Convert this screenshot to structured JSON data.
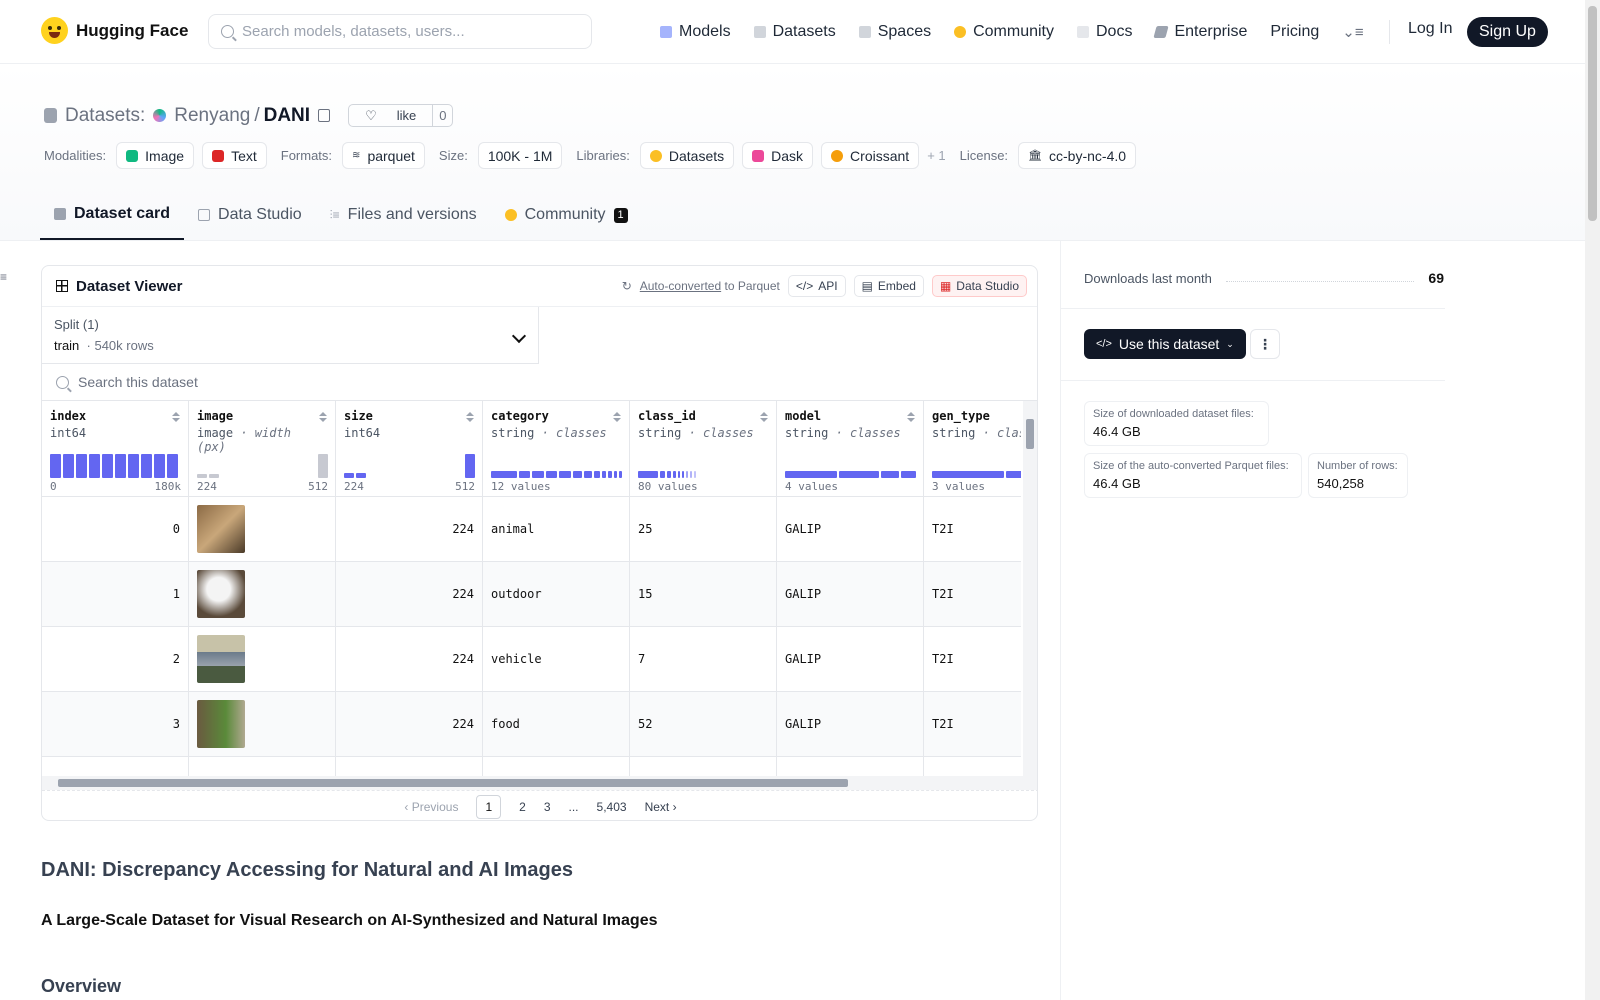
{
  "nav": {
    "brand": "Hugging Face",
    "search_placeholder": "Search models, datasets, users...",
    "links": [
      "Models",
      "Datasets",
      "Spaces",
      "Community",
      "Docs",
      "Enterprise",
      "Pricing"
    ],
    "login": "Log In",
    "signup": "Sign Up"
  },
  "repo": {
    "section": "Datasets:",
    "owner": "Renyang",
    "slash": "/",
    "name": "DANI",
    "like_label": "like",
    "like_count": "0"
  },
  "tags": {
    "modalities_label": "Modalities:",
    "modalities": [
      "Image",
      "Text"
    ],
    "formats_label": "Formats:",
    "format": "parquet",
    "size_label": "Size:",
    "size": "100K - 1M",
    "libraries_label": "Libraries:",
    "libraries": [
      "Datasets",
      "Dask",
      "Croissant"
    ],
    "more": "+ 1",
    "license_label": "License:",
    "license": "cc-by-nc-4.0"
  },
  "tabs": [
    "Dataset card",
    "Data Studio",
    "Files and versions",
    "Community"
  ],
  "community_count": "1",
  "viewer": {
    "title": "Dataset Viewer",
    "auto_converted": "Auto-converted",
    "to_parquet": "to Parquet",
    "api": "API",
    "embed": "Embed",
    "data_studio": "Data Studio",
    "split_label": "Split (1)",
    "split_name": "train",
    "split_rows": "· 540k rows",
    "search_placeholder": "Search this dataset",
    "columns": [
      {
        "name": "index",
        "type": "int64",
        "sub": "",
        "range_lo": "0",
        "range_hi": "180k"
      },
      {
        "name": "image",
        "type": "image",
        "sub": "· width (px)",
        "range_lo": "224",
        "range_hi": "512"
      },
      {
        "name": "size",
        "type": "int64",
        "sub": "",
        "range_lo": "224",
        "range_hi": "512"
      },
      {
        "name": "category",
        "type": "string",
        "sub": "· classes",
        "range_lo": "12 values",
        "range_hi": ""
      },
      {
        "name": "class_id",
        "type": "string",
        "sub": "· classes",
        "range_lo": "80 values",
        "range_hi": ""
      },
      {
        "name": "model",
        "type": "string",
        "sub": "· classes",
        "range_lo": "4 values",
        "range_hi": ""
      },
      {
        "name": "gen_type",
        "type": "string",
        "sub": "· classes",
        "range_lo": "3 values",
        "range_hi": ""
      }
    ],
    "rows": [
      {
        "index": "0",
        "size": "224",
        "category": "animal",
        "class_id": "25",
        "model": "GALIP",
        "gen_type": "T2I"
      },
      {
        "index": "1",
        "size": "224",
        "category": "outdoor",
        "class_id": "15",
        "model": "GALIP",
        "gen_type": "T2I"
      },
      {
        "index": "2",
        "size": "224",
        "category": "vehicle",
        "class_id": "7",
        "model": "GALIP",
        "gen_type": "T2I"
      },
      {
        "index": "3",
        "size": "224",
        "category": "food",
        "class_id": "52",
        "model": "GALIP",
        "gen_type": "T2I"
      }
    ],
    "pager": {
      "prev": "‹ Previous",
      "pages": [
        "1",
        "2",
        "3",
        "...",
        "5,403"
      ],
      "next": "Next ›"
    }
  },
  "card": {
    "h1": "DANI: Discrepancy Accessing for Natural and AI Images",
    "h2": "A Large-Scale Dataset for Visual Research on AI-Synthesized and Natural Images",
    "h3": "Overview"
  },
  "side": {
    "downloads_label": "Downloads last month",
    "downloads": "69",
    "use_label": "Use this dataset",
    "stat1_label": "Size of downloaded dataset files:",
    "stat1": "46.4 GB",
    "stat2_label": "Size of the auto-converted Parquet files:",
    "stat2": "46.4 GB",
    "stat3_label": "Number of rows:",
    "stat3": "540,258"
  },
  "colors": {
    "accent": "#6366f1",
    "dark": "#111827"
  }
}
